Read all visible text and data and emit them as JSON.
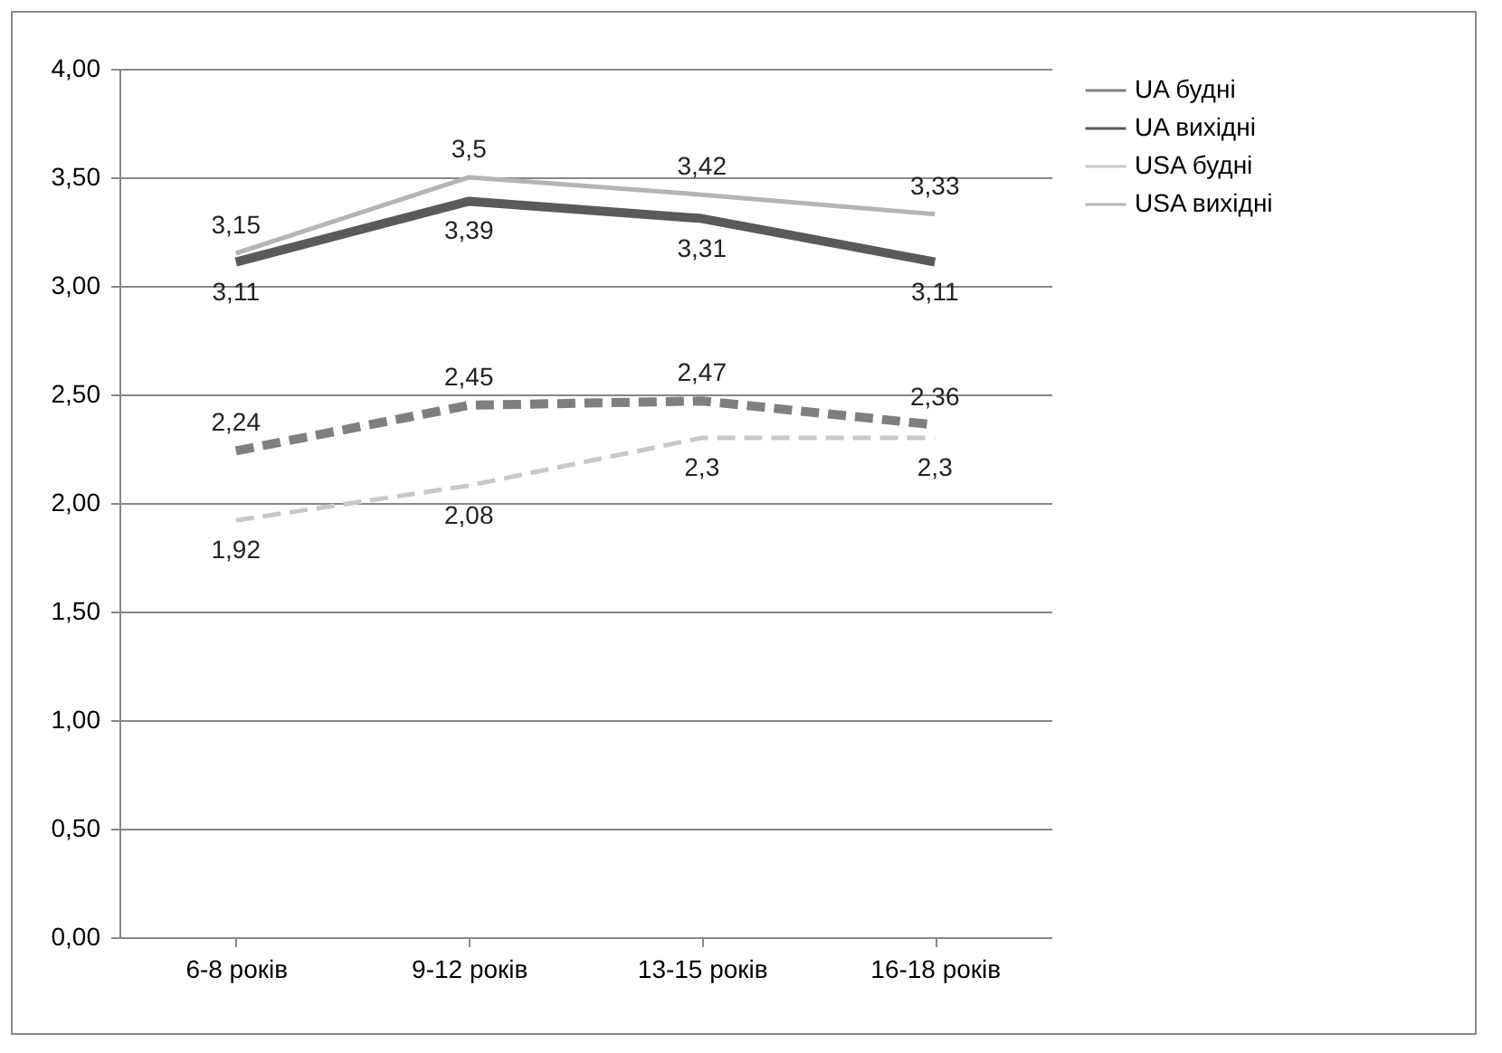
{
  "chart_data": {
    "type": "line",
    "categories": [
      "6-8 років",
      "9-12 років",
      "13-15 років",
      "16-18 років"
    ],
    "ylim": [
      0,
      4
    ],
    "yticks": [
      {
        "value": 0,
        "label": "0,00"
      },
      {
        "value": 0.5,
        "label": "0,50"
      },
      {
        "value": 1,
        "label": "1,00"
      },
      {
        "value": 1.5,
        "label": "1,50"
      },
      {
        "value": 2,
        "label": "2,00"
      },
      {
        "value": 2.5,
        "label": "2,50"
      },
      {
        "value": 3,
        "label": "3,00"
      },
      {
        "value": 3.5,
        "label": "3,50"
      },
      {
        "value": 4,
        "label": "4,00"
      }
    ],
    "grid": "y",
    "legend": "right",
    "marker": "none",
    "series": [
      {
        "name": "UA будні",
        "color": "#7f7f7f",
        "line_style": "dashed",
        "values": [
          2.24,
          2.45,
          2.47,
          2.36
        ],
        "value_labels": [
          "2,24",
          "2,45",
          "2,47",
          "2,36"
        ]
      },
      {
        "name": "UA вихідні",
        "color": "#5a5a5a",
        "line_style": "solid",
        "values": [
          3.11,
          3.39,
          3.31,
          3.11
        ],
        "value_labels": [
          "3,11",
          "3,39",
          "3,31",
          "3,11"
        ]
      },
      {
        "name": "USA будні",
        "color": "#c8c8c8",
        "line_style": "dashed",
        "values": [
          1.92,
          2.08,
          2.3,
          2.3
        ],
        "value_labels": [
          "1,92",
          "2,08",
          "2,3",
          "2,3"
        ]
      },
      {
        "name": "USA вихідні",
        "color": "#b4b4b4",
        "line_style": "solid",
        "values": [
          3.15,
          3.5,
          3.42,
          3.33
        ],
        "value_labels": [
          "3,15",
          "3,5",
          "3,42",
          "3,33"
        ]
      }
    ]
  }
}
